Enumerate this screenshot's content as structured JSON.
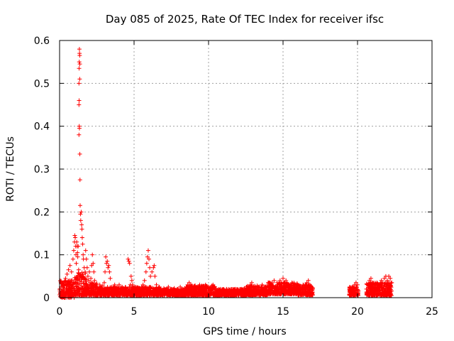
{
  "chart_data": {
    "type": "scatter",
    "title": "Day 085 of 2025, Rate Of TEC Index for receiver ifsc",
    "xlabel": "GPS time / hours",
    "ylabel": "ROTI / TECUs",
    "xlim": [
      0,
      25
    ],
    "ylim": [
      0,
      0.6
    ],
    "xticks": [
      0,
      5,
      10,
      15,
      20,
      25
    ],
    "xtick_labels": [
      "0",
      "5",
      "10",
      "15",
      "20",
      "25"
    ],
    "yticks": [
      0,
      0.1,
      0.2,
      0.3,
      0.4,
      0.5,
      0.6
    ],
    "ytick_labels": [
      "0",
      "0.1",
      "0.2",
      "0.3",
      "0.4",
      "0.5",
      "0.6"
    ],
    "grid": true,
    "marker": "+",
    "color": "#ff0000",
    "series": [
      {
        "name": "ROTI",
        "points": [
          [
            0.05,
            0.012
          ],
          [
            0.1,
            0.025
          ],
          [
            0.15,
            0.008
          ],
          [
            0.2,
            0.035
          ],
          [
            0.25,
            0.018
          ],
          [
            0.3,
            0.03
          ],
          [
            0.35,
            0.01
          ],
          [
            0.4,
            0.045
          ],
          [
            0.45,
            0.022
          ],
          [
            0.5,
            0.055
          ],
          [
            0.55,
            0.015
          ],
          [
            0.6,
            0.065
          ],
          [
            0.65,
            0.03
          ],
          [
            0.7,
            0.075
          ],
          [
            0.75,
            0.02
          ],
          [
            0.8,
            0.06
          ],
          [
            0.85,
            0.04
          ],
          [
            0.9,
            0.09
          ],
          [
            0.95,
            0.11
          ],
          [
            1.0,
            0.13
          ],
          [
            1.02,
            0.145
          ],
          [
            1.05,
            0.14
          ],
          [
            1.08,
            0.12
          ],
          [
            1.1,
            0.1
          ],
          [
            1.12,
            0.08
          ],
          [
            1.15,
            0.13
          ],
          [
            1.18,
            0.12
          ],
          [
            1.2,
            0.105
          ],
          [
            1.22,
            0.095
          ],
          [
            1.25,
            0.12
          ],
          [
            1.28,
            0.065
          ],
          [
            1.3,
            0.5
          ],
          [
            1.31,
            0.535
          ],
          [
            1.32,
            0.55
          ],
          [
            1.33,
            0.58
          ],
          [
            1.34,
            0.57
          ],
          [
            1.35,
            0.565
          ],
          [
            1.36,
            0.545
          ],
          [
            1.3,
            0.45
          ],
          [
            1.31,
            0.46
          ],
          [
            1.32,
            0.4
          ],
          [
            1.33,
            0.395
          ],
          [
            1.3,
            0.38
          ],
          [
            1.35,
            0.51
          ],
          [
            1.36,
            0.335
          ],
          [
            1.37,
            0.275
          ],
          [
            1.38,
            0.215
          ],
          [
            1.4,
            0.195
          ],
          [
            1.42,
            0.18
          ],
          [
            1.45,
            0.2
          ],
          [
            1.48,
            0.17
          ],
          [
            1.5,
            0.16
          ],
          [
            1.52,
            0.14
          ],
          [
            1.55,
            0.125
          ],
          [
            1.58,
            0.1
          ],
          [
            1.6,
            0.09
          ],
          [
            1.65,
            0.07
          ],
          [
            1.7,
            0.045
          ],
          [
            1.75,
            0.11
          ],
          [
            1.8,
            0.09
          ],
          [
            1.85,
            0.07
          ],
          [
            1.9,
            0.05
          ],
          [
            1.95,
            0.04
          ],
          [
            2.0,
            0.06
          ],
          [
            2.05,
            0.035
          ],
          [
            2.1,
            0.045
          ],
          [
            2.15,
            0.075
          ],
          [
            2.2,
            0.1
          ],
          [
            2.25,
            0.08
          ],
          [
            2.3,
            0.06
          ],
          [
            2.35,
            0.04
          ],
          [
            2.4,
            0.03
          ],
          [
            2.5,
            0.025
          ],
          [
            2.6,
            0.02
          ],
          [
            2.7,
            0.03
          ],
          [
            2.8,
            0.022
          ],
          [
            2.9,
            0.028
          ],
          [
            3.0,
            0.035
          ],
          [
            3.05,
            0.06
          ],
          [
            3.1,
            0.095
          ],
          [
            3.15,
            0.08
          ],
          [
            3.2,
            0.085
          ],
          [
            3.25,
            0.07
          ],
          [
            3.3,
            0.075
          ],
          [
            3.35,
            0.06
          ],
          [
            3.4,
            0.045
          ],
          [
            3.5,
            0.025
          ],
          [
            3.6,
            0.02
          ],
          [
            3.7,
            0.03
          ],
          [
            3.8,
            0.02
          ],
          [
            3.9,
            0.025
          ],
          [
            4.0,
            0.03
          ],
          [
            4.1,
            0.02
          ],
          [
            4.2,
            0.025
          ],
          [
            4.3,
            0.018
          ],
          [
            4.4,
            0.022
          ],
          [
            4.5,
            0.02
          ],
          [
            4.6,
            0.09
          ],
          [
            4.65,
            0.085
          ],
          [
            4.7,
            0.08
          ],
          [
            4.75,
            0.03
          ],
          [
            4.8,
            0.05
          ],
          [
            4.85,
            0.04
          ],
          [
            4.9,
            0.03
          ],
          [
            5.0,
            0.02
          ],
          [
            5.1,
            0.025
          ],
          [
            5.2,
            0.02
          ],
          [
            5.3,
            0.018
          ],
          [
            5.4,
            0.022
          ],
          [
            5.5,
            0.025
          ],
          [
            5.6,
            0.03
          ],
          [
            5.7,
            0.04
          ],
          [
            5.8,
            0.06
          ],
          [
            5.85,
            0.08
          ],
          [
            5.9,
            0.095
          ],
          [
            5.95,
            0.11
          ],
          [
            6.0,
            0.09
          ],
          [
            6.05,
            0.07
          ],
          [
            6.1,
            0.05
          ],
          [
            6.2,
            0.06
          ],
          [
            6.3,
            0.07
          ],
          [
            6.35,
            0.075
          ],
          [
            6.4,
            0.05
          ],
          [
            6.5,
            0.03
          ],
          [
            6.6,
            0.02
          ],
          [
            6.7,
            0.025
          ],
          [
            6.8,
            0.02
          ],
          [
            6.9,
            0.015
          ],
          [
            7.0,
            0.022
          ],
          [
            7.1,
            0.018
          ],
          [
            7.2,
            0.02
          ],
          [
            7.3,
            0.025
          ],
          [
            7.4,
            0.015
          ],
          [
            7.5,
            0.02
          ],
          [
            7.6,
            0.018
          ],
          [
            7.7,
            0.022
          ],
          [
            7.8,
            0.015
          ],
          [
            7.9,
            0.02
          ],
          [
            8.0,
            0.018
          ],
          [
            8.1,
            0.025
          ],
          [
            8.2,
            0.02
          ],
          [
            8.3,
            0.018
          ],
          [
            8.4,
            0.022
          ],
          [
            8.5,
            0.025
          ],
          [
            8.6,
            0.03
          ],
          [
            8.7,
            0.035
          ],
          [
            8.8,
            0.03
          ],
          [
            8.9,
            0.025
          ],
          [
            9.0,
            0.022
          ],
          [
            9.1,
            0.028
          ],
          [
            9.2,
            0.025
          ],
          [
            9.3,
            0.02
          ],
          [
            9.4,
            0.03
          ],
          [
            9.5,
            0.025
          ],
          [
            9.6,
            0.02
          ],
          [
            9.7,
            0.025
          ],
          [
            9.8,
            0.03
          ],
          [
            9.9,
            0.025
          ],
          [
            10.0,
            0.02
          ],
          [
            10.1,
            0.022
          ],
          [
            10.2,
            0.025
          ],
          [
            10.3,
            0.03
          ],
          [
            10.4,
            0.025
          ],
          [
            10.5,
            0.02
          ],
          [
            10.6,
            0.018
          ],
          [
            10.7,
            0.015
          ],
          [
            10.8,
            0.02
          ],
          [
            10.9,
            0.018
          ],
          [
            11.0,
            0.015
          ],
          [
            11.2,
            0.02
          ],
          [
            11.4,
            0.018
          ],
          [
            11.6,
            0.015
          ],
          [
            11.8,
            0.02
          ],
          [
            12.0,
            0.018
          ],
          [
            12.2,
            0.02
          ],
          [
            12.4,
            0.022
          ],
          [
            12.6,
            0.025
          ],
          [
            12.8,
            0.03
          ],
          [
            12.9,
            0.035
          ],
          [
            13.0,
            0.025
          ],
          [
            13.2,
            0.02
          ],
          [
            13.4,
            0.025
          ],
          [
            13.6,
            0.03
          ],
          [
            13.8,
            0.025
          ],
          [
            14.0,
            0.035
          ],
          [
            14.2,
            0.03
          ],
          [
            14.4,
            0.04
          ],
          [
            14.6,
            0.035
          ],
          [
            14.8,
            0.04
          ],
          [
            15.0,
            0.045
          ],
          [
            15.1,
            0.035
          ],
          [
            15.2,
            0.04
          ],
          [
            15.4,
            0.03
          ],
          [
            15.6,
            0.035
          ],
          [
            15.8,
            0.03
          ],
          [
            16.0,
            0.025
          ],
          [
            16.2,
            0.02
          ],
          [
            16.4,
            0.025
          ],
          [
            16.5,
            0.03
          ],
          [
            16.6,
            0.035
          ],
          [
            16.7,
            0.04
          ],
          [
            16.8,
            0.03
          ],
          [
            16.9,
            0.025
          ],
          [
            17.0,
            0.02
          ],
          [
            19.5,
            0.015
          ],
          [
            19.6,
            0.02
          ],
          [
            19.7,
            0.025
          ],
          [
            19.8,
            0.03
          ],
          [
            19.9,
            0.035
          ],
          [
            20.0,
            0.03
          ],
          [
            20.05,
            0.015
          ],
          [
            20.6,
            0.02
          ],
          [
            20.7,
            0.03
          ],
          [
            20.8,
            0.04
          ],
          [
            20.9,
            0.045
          ],
          [
            21.0,
            0.035
          ],
          [
            21.1,
            0.03
          ],
          [
            21.2,
            0.025
          ],
          [
            21.3,
            0.035
          ],
          [
            21.4,
            0.03
          ],
          [
            21.5,
            0.025
          ],
          [
            21.6,
            0.04
          ],
          [
            21.7,
            0.035
          ],
          [
            21.8,
            0.045
          ],
          [
            21.9,
            0.05
          ],
          [
            22.0,
            0.04
          ],
          [
            22.1,
            0.05
          ],
          [
            22.2,
            0.045
          ],
          [
            22.3,
            0.035
          ]
        ],
        "bands": [
          {
            "x0": 0.0,
            "x1": 1.0,
            "lo": 0.0,
            "hi": 0.04
          },
          {
            "x0": 1.0,
            "x1": 1.8,
            "lo": 0.005,
            "hi": 0.06
          },
          {
            "x0": 1.8,
            "x1": 2.5,
            "lo": 0.005,
            "hi": 0.035
          },
          {
            "x0": 2.5,
            "x1": 6.8,
            "lo": 0.005,
            "hi": 0.025
          },
          {
            "x0": 6.8,
            "x1": 8.5,
            "lo": 0.005,
            "hi": 0.02
          },
          {
            "x0": 8.5,
            "x1": 10.5,
            "lo": 0.005,
            "hi": 0.028
          },
          {
            "x0": 10.5,
            "x1": 12.5,
            "lo": 0.005,
            "hi": 0.02
          },
          {
            "x0": 12.5,
            "x1": 14.0,
            "lo": 0.006,
            "hi": 0.028
          },
          {
            "x0": 14.0,
            "x1": 16.0,
            "lo": 0.008,
            "hi": 0.035
          },
          {
            "x0": 16.0,
            "x1": 17.0,
            "lo": 0.006,
            "hi": 0.03
          },
          {
            "x0": 19.45,
            "x1": 20.05,
            "lo": 0.005,
            "hi": 0.025
          },
          {
            "x0": 20.6,
            "x1": 22.3,
            "lo": 0.005,
            "hi": 0.035
          }
        ]
      }
    ]
  }
}
